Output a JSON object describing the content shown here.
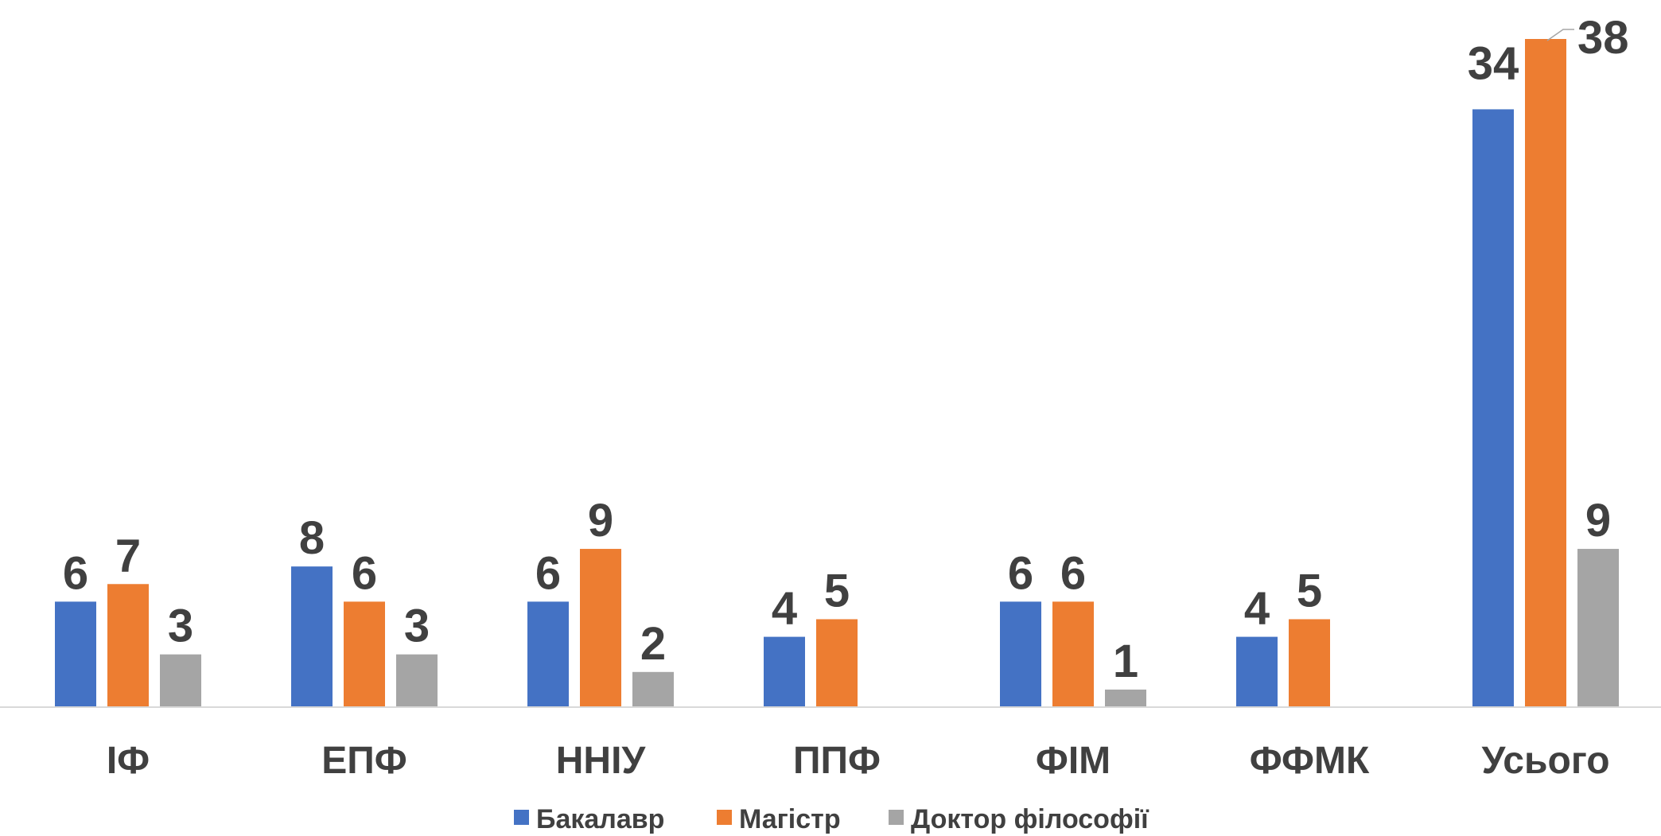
{
  "chart_data": {
    "type": "bar",
    "categories": [
      "ІФ",
      "ЕПФ",
      "ННІУ",
      "ППФ",
      "ФІМ",
      "ФФМК",
      "Усього"
    ],
    "series": [
      {
        "name": "Бакалавр",
        "color": "#4472C4",
        "values": [
          6,
          8,
          6,
          4,
          6,
          4,
          34
        ]
      },
      {
        "name": "Магістр",
        "color": "#ED7D31",
        "values": [
          7,
          6,
          9,
          5,
          6,
          5,
          38
        ]
      },
      {
        "name": "Доктор філософії",
        "color": "#A5A5A5",
        "values": [
          3,
          3,
          2,
          null,
          1,
          null,
          9
        ]
      }
    ],
    "ylim": [
      0,
      38
    ],
    "grid": false,
    "legend_position": "bottom",
    "data_labels": true
  }
}
